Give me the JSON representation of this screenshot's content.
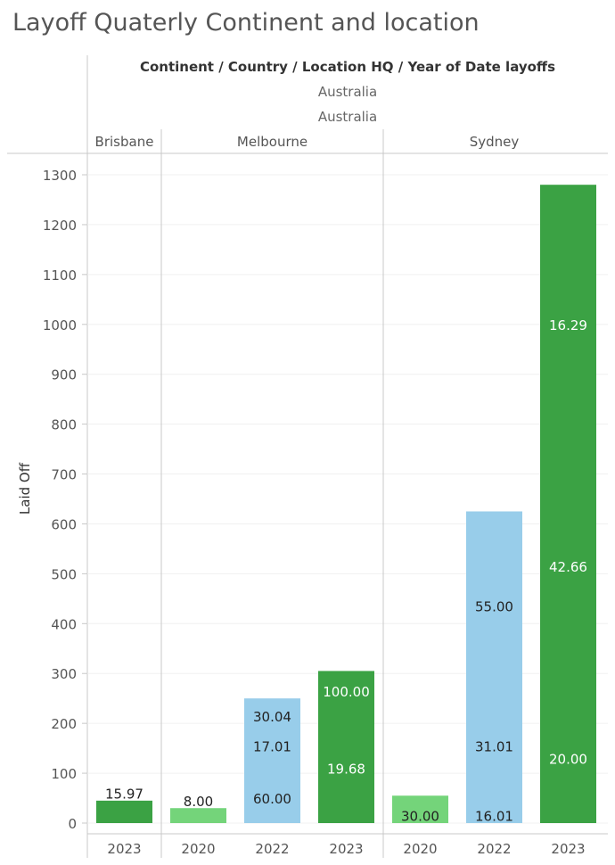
{
  "title": "Layoff Quaterly Continent and location",
  "chart_data": {
    "type": "bar",
    "header": "Continent / Country / Location HQ / Year of Date layoffs",
    "continent": "Australia",
    "country": "Australia",
    "ylabel": "Laid Off",
    "ylim": [
      0,
      1350
    ],
    "yticks": [
      0,
      100,
      200,
      300,
      400,
      500,
      600,
      700,
      800,
      900,
      1000,
      1100,
      1200,
      1300
    ],
    "grid": true,
    "colors": {
      "2020": "#74d47a",
      "2022": "#98cdea",
      "2023": "#3ba244"
    },
    "locations": [
      {
        "name": "Brisbane",
        "bars": [
          {
            "year": "2023",
            "total": 45,
            "labels": [
              {
                "text": "15.97",
                "at": 60,
                "color": "dark"
              }
            ]
          }
        ]
      },
      {
        "name": "Melbourne",
        "bars": [
          {
            "year": "2020",
            "total": 30,
            "labels": [
              {
                "text": "8.00",
                "at": 45,
                "color": "dark"
              }
            ]
          },
          {
            "year": "2022",
            "total": 250,
            "labels": [
              {
                "text": "30.04",
                "at": 215,
                "color": "dark"
              },
              {
                "text": "17.01",
                "at": 155,
                "color": "dark"
              },
              {
                "text": "60.00",
                "at": 50,
                "color": "dark"
              }
            ]
          },
          {
            "year": "2023",
            "total": 305,
            "labels": [
              {
                "text": "100.00",
                "at": 265,
                "color": "light"
              },
              {
                "text": "19.68",
                "at": 110,
                "color": "light"
              }
            ]
          }
        ]
      },
      {
        "name": "Sydney",
        "bars": [
          {
            "year": "2020",
            "total": 55,
            "labels": [
              {
                "text": "30.00",
                "at": 15,
                "color": "dark"
              }
            ]
          },
          {
            "year": "2022",
            "total": 625,
            "labels": [
              {
                "text": "55.00",
                "at": 435,
                "color": "dark"
              },
              {
                "text": "31.01",
                "at": 155,
                "color": "dark"
              },
              {
                "text": "16.01",
                "at": 15,
                "color": "dark"
              }
            ]
          },
          {
            "year": "2023",
            "total": 1280,
            "labels": [
              {
                "text": "16.29",
                "at": 1000,
                "color": "light"
              },
              {
                "text": "42.66",
                "at": 515,
                "color": "light"
              },
              {
                "text": "20.00",
                "at": 130,
                "color": "light"
              }
            ]
          }
        ]
      }
    ]
  }
}
